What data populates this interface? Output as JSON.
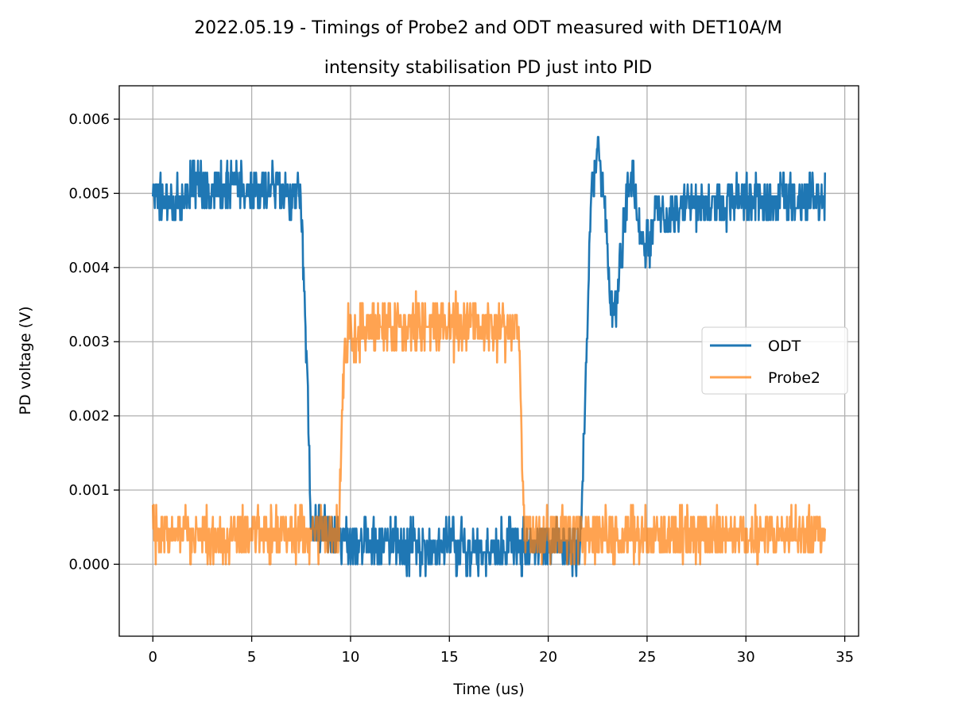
{
  "chart_data": {
    "type": "line",
    "title": "2022.05.19 - Timings of Probe2 and ODT measured with DET10A/M",
    "subtitle": "intensity stabilisation PD just into PID",
    "xlabel": "Time (us)",
    "ylabel": "PD voltage (V)",
    "xlim": [
      -1.7,
      35.7
    ],
    "ylim": [
      -0.00097,
      0.00645
    ],
    "x_ticks": [
      0,
      5,
      10,
      15,
      20,
      25,
      30,
      35
    ],
    "x_tick_labels": [
      "0",
      "5",
      "10",
      "15",
      "20",
      "25",
      "30",
      "35"
    ],
    "y_ticks": [
      0.0,
      0.001,
      0.002,
      0.003,
      0.004,
      0.005,
      0.006
    ],
    "y_tick_labels": [
      "0.000",
      "0.001",
      "0.002",
      "0.003",
      "0.004",
      "0.005",
      "0.006"
    ],
    "grid": true,
    "legend_position": "center-right",
    "series": [
      {
        "name": "ODT",
        "color": "#1f77b4",
        "noise_amplitude": 0.0004,
        "points": [
          [
            0.0,
            0.005
          ],
          [
            0.5,
            0.0049
          ],
          [
            1.0,
            0.0048
          ],
          [
            2.0,
            0.0051
          ],
          [
            3.0,
            0.005
          ],
          [
            4.0,
            0.0051
          ],
          [
            5.0,
            0.0051
          ],
          [
            6.0,
            0.0051
          ],
          [
            7.0,
            0.005
          ],
          [
            7.5,
            0.0049
          ],
          [
            7.8,
            0.0026
          ],
          [
            8.0,
            0.0005
          ],
          [
            8.5,
            0.0006
          ],
          [
            9.0,
            0.0004
          ],
          [
            10.0,
            0.0003
          ],
          [
            12.0,
            0.0003
          ],
          [
            13.0,
            0.0002
          ],
          [
            14.0,
            0.0002
          ],
          [
            15.0,
            0.0003
          ],
          [
            16.0,
            0.0002
          ],
          [
            17.0,
            0.0002
          ],
          [
            18.0,
            0.0003
          ],
          [
            19.0,
            0.0002
          ],
          [
            20.0,
            0.0003
          ],
          [
            21.0,
            0.0002
          ],
          [
            21.6,
            0.0002
          ],
          [
            21.9,
            0.0025
          ],
          [
            22.2,
            0.0052
          ],
          [
            22.5,
            0.0055
          ],
          [
            22.8,
            0.005
          ],
          [
            23.0,
            0.0042
          ],
          [
            23.3,
            0.0032
          ],
          [
            23.6,
            0.004
          ],
          [
            24.0,
            0.005
          ],
          [
            24.3,
            0.0052
          ],
          [
            24.6,
            0.0045
          ],
          [
            25.0,
            0.0042
          ],
          [
            25.5,
            0.0048
          ],
          [
            26.0,
            0.0046
          ],
          [
            27.0,
            0.0049
          ],
          [
            28.0,
            0.0048
          ],
          [
            29.0,
            0.0049
          ],
          [
            30.0,
            0.0049
          ],
          [
            31.0,
            0.0049
          ],
          [
            32.0,
            0.0049
          ],
          [
            33.0,
            0.0049
          ],
          [
            34.0,
            0.0049
          ]
        ]
      },
      {
        "name": "Probe2",
        "color": "#ff7f0e",
        "noise_amplitude": 0.00045,
        "points": [
          [
            0.0,
            0.0004
          ],
          [
            2.0,
            0.0004
          ],
          [
            4.0,
            0.0004
          ],
          [
            6.0,
            0.0004
          ],
          [
            8.0,
            0.0004
          ],
          [
            9.4,
            0.0004
          ],
          [
            9.7,
            0.003
          ],
          [
            10.0,
            0.0031
          ],
          [
            12.0,
            0.0032
          ],
          [
            14.0,
            0.0032
          ],
          [
            16.0,
            0.0032
          ],
          [
            18.0,
            0.0032
          ],
          [
            18.5,
            0.0031
          ],
          [
            18.8,
            0.0005
          ],
          [
            19.0,
            0.0004
          ],
          [
            22.0,
            0.0004
          ],
          [
            26.0,
            0.0004
          ],
          [
            30.0,
            0.0004
          ],
          [
            34.0,
            0.0004
          ]
        ]
      }
    ]
  }
}
